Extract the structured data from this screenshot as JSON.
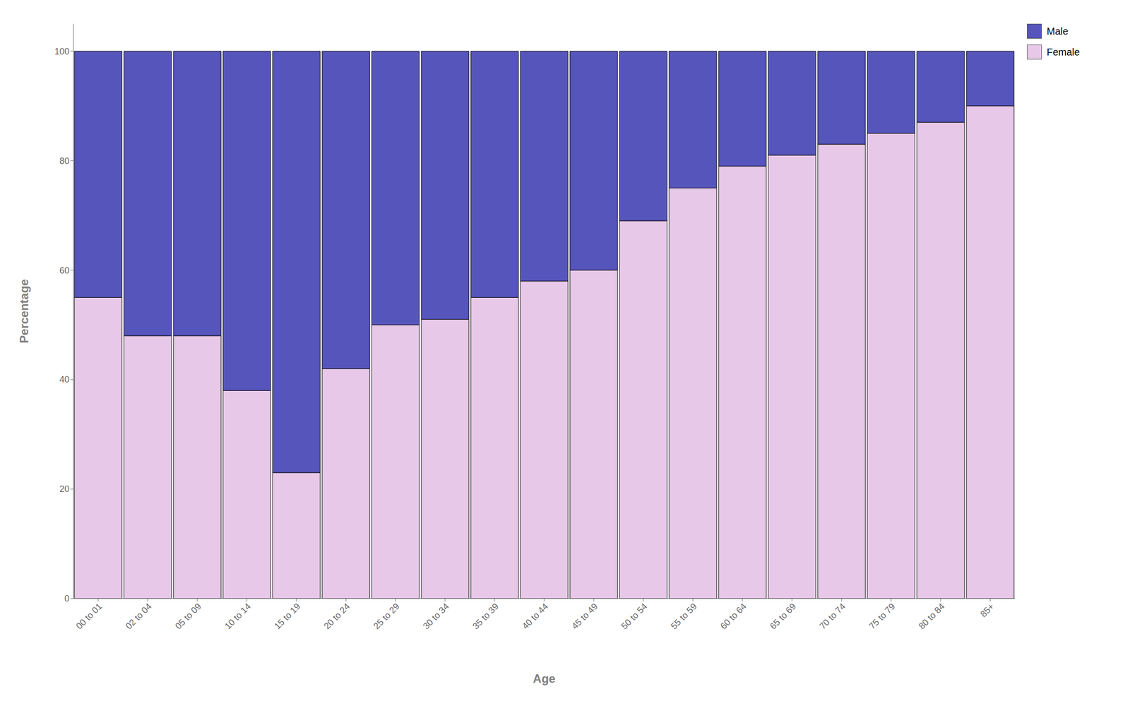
{
  "chart_data": {
    "type": "bar",
    "stacked": true,
    "categories": [
      "00 to 01",
      "02 to 04",
      "05 to 09",
      "10 to 14",
      "15 to 19",
      "20 to 24",
      "25 to 29",
      "30 to 34",
      "35 to 39",
      "40 to 44",
      "45 to 49",
      "50 to 54",
      "55 to 59",
      "60 to 64",
      "65 to 69",
      "70 to 74",
      "75 to 79",
      "80 to 84",
      "85+"
    ],
    "series": [
      {
        "name": "Female",
        "color": "#e8c8e8",
        "values": [
          55,
          48,
          48,
          38,
          23,
          42,
          50,
          51,
          55,
          58,
          60,
          69,
          75,
          79,
          81,
          83,
          85,
          87,
          90
        ]
      },
      {
        "name": "Male",
        "color": "#5555bb",
        "values": [
          45,
          52,
          52,
          62,
          77,
          58,
          50,
          49,
          45,
          42,
          40,
          31,
          25,
          21,
          19,
          17,
          15,
          13,
          10
        ]
      }
    ],
    "xlabel": "Age",
    "ylabel": "Percentage",
    "ylim": [
      0,
      105
    ],
    "yticks": [
      0,
      20,
      40,
      60,
      80,
      100
    ],
    "grid": false,
    "legend": "upper right"
  }
}
